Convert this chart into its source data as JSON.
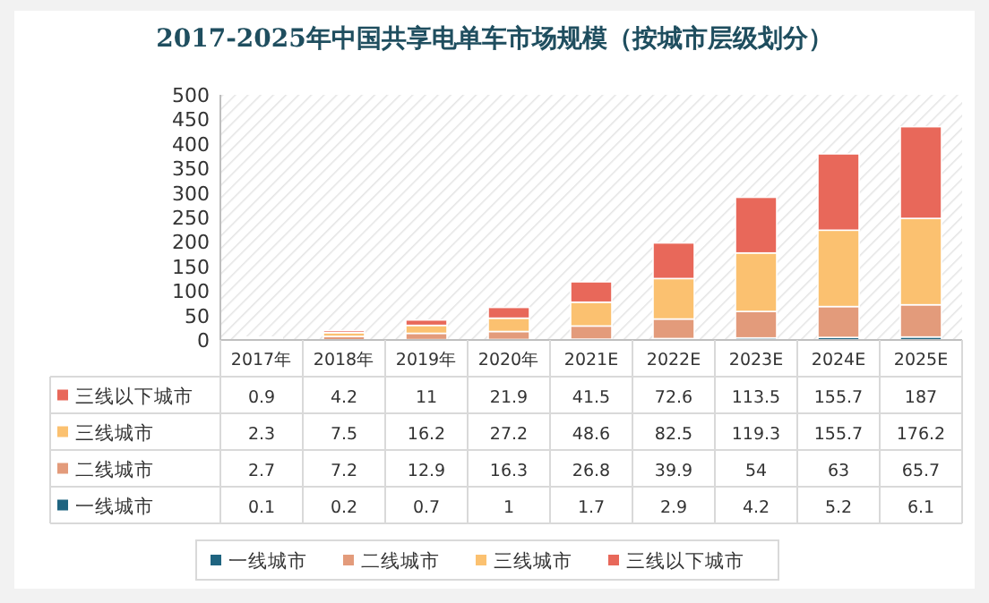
{
  "chart_data": {
    "type": "bar",
    "title": "2017-2025年中国共享电单车市场规模（按城市层级划分）",
    "stacked": true,
    "categories": [
      "2017年",
      "2018年",
      "2019年",
      "2020年",
      "2021E",
      "2022E",
      "2023E",
      "2024E",
      "2025E"
    ],
    "series": [
      {
        "name": "一线城市",
        "color": "#1f6480",
        "values": [
          0.1,
          0.2,
          0.7,
          1,
          1.7,
          2.9,
          4.2,
          5.2,
          6.1
        ]
      },
      {
        "name": "二线城市",
        "color": "#e39b7b",
        "values": [
          2.7,
          7.2,
          12.9,
          16.3,
          26.8,
          39.9,
          54,
          63,
          65.7
        ]
      },
      {
        "name": "三线城市",
        "color": "#fbc170",
        "values": [
          2.3,
          7.5,
          16.2,
          27.2,
          48.6,
          82.5,
          119.3,
          155.7,
          176.2
        ]
      },
      {
        "name": "三线以下城市",
        "color": "#e8685a",
        "values": [
          0.9,
          4.2,
          11,
          21.9,
          41.5,
          72.6,
          113.5,
          155.7,
          187
        ]
      }
    ],
    "ylim": [
      0,
      500
    ],
    "yticks": [
      0,
      50,
      100,
      150,
      200,
      250,
      300,
      350,
      400,
      450,
      500
    ],
    "data_labels": true,
    "legend": "bottom",
    "grid": false
  }
}
